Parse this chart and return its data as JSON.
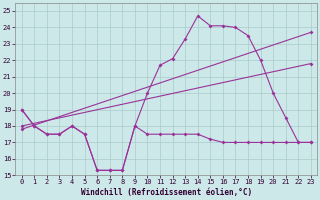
{
  "bg_color": "#cce8e8",
  "line_color": "#993399",
  "xlabel": "Windchill (Refroidissement éolien,°C)",
  "xlim": [
    -0.5,
    23.5
  ],
  "ylim": [
    15,
    25.5
  ],
  "yticks": [
    15,
    16,
    17,
    18,
    19,
    20,
    21,
    22,
    23,
    24,
    25
  ],
  "xticks": [
    0,
    1,
    2,
    3,
    4,
    5,
    6,
    7,
    8,
    9,
    10,
    11,
    12,
    13,
    14,
    15,
    16,
    17,
    18,
    19,
    20,
    21,
    22,
    23
  ],
  "line1_x": [
    0,
    1,
    2,
    3,
    4,
    5,
    6,
    7,
    8,
    9,
    10,
    11,
    12,
    13,
    14,
    15,
    16,
    17,
    18,
    19,
    20,
    21,
    22,
    23
  ],
  "line1_y": [
    19,
    18,
    17.5,
    17.5,
    18,
    17.5,
    15.3,
    15.3,
    15.3,
    18.0,
    17.5,
    17.5,
    17.5,
    17.5,
    17.5,
    17.2,
    17.0,
    17.0,
    17.0,
    17.0,
    17.0,
    17.0,
    17.0,
    17.0
  ],
  "line2_x": [
    0,
    1,
    2,
    3,
    4,
    5,
    6,
    7,
    8,
    9,
    10,
    11,
    12,
    13,
    14,
    15,
    16,
    17,
    18,
    19,
    20,
    21,
    22,
    23
  ],
  "line2_y": [
    19,
    18,
    17.5,
    17.5,
    18,
    17.5,
    15.3,
    15.3,
    15.3,
    18.0,
    20.0,
    21.7,
    22.1,
    23.3,
    24.7,
    24.1,
    24.1,
    24.0,
    23.5,
    22.0,
    20.0,
    18.5,
    17.0,
    17.0
  ],
  "line3_x": [
    0,
    23
  ],
  "line3_y": [
    18.0,
    21.8
  ],
  "line4_x": [
    0,
    23
  ],
  "line4_y": [
    17.8,
    23.7
  ],
  "grid_color": "#aacccc",
  "tick_color": "#330033",
  "xlabel_fontsize": 5.5,
  "tick_fontsize": 5.0
}
